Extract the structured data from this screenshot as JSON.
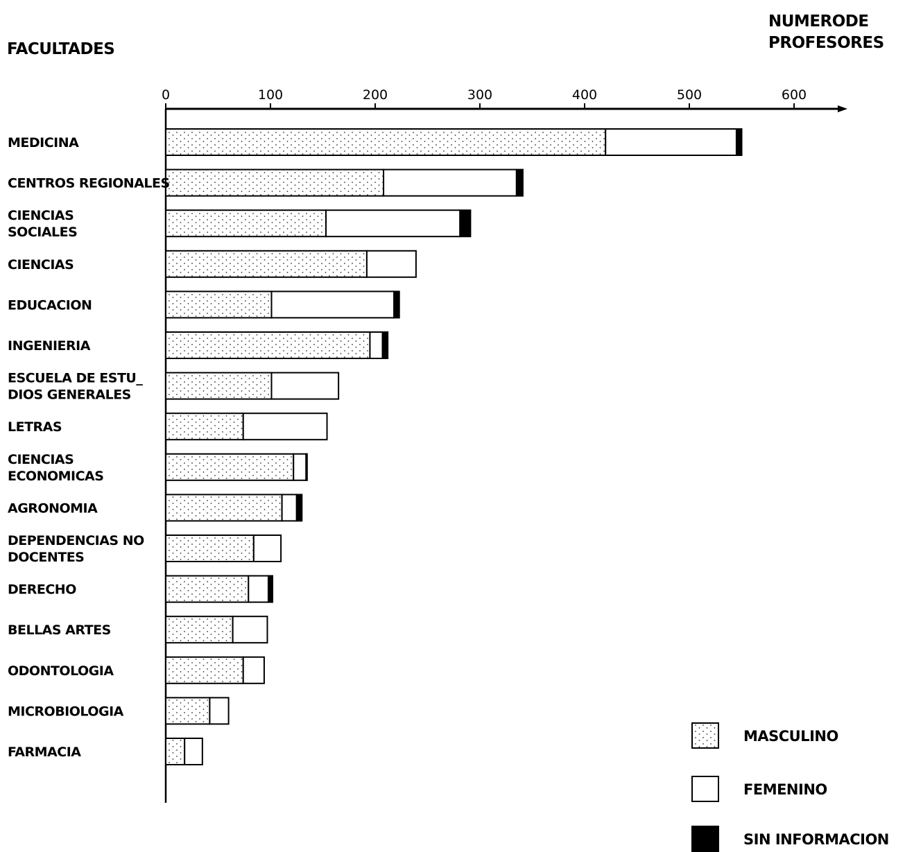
{
  "chart_data": {
    "type": "bar",
    "orientation": "horizontal",
    "stacked": true,
    "category_axis_title": "FACULTADES",
    "value_axis_title_line1": "NUMERODE",
    "value_axis_title_line2": "PROFESORES",
    "xlim": [
      0,
      650
    ],
    "xticks": [
      0,
      100,
      200,
      300,
      400,
      500,
      600
    ],
    "categories": [
      [
        "MEDICINA"
      ],
      [
        "CENTROS REGIONALES"
      ],
      [
        "CIENCIAS",
        "SOCIALES"
      ],
      [
        "CIENCIAS"
      ],
      [
        "EDUCACION"
      ],
      [
        "INGENIERIA"
      ],
      [
        "ESCUELA DE ESTU_",
        "DIOS GENERALES"
      ],
      [
        "LETRAS"
      ],
      [
        "CIENCIAS",
        "ECONOMICAS"
      ],
      [
        "AGRONOMIA"
      ],
      [
        "DEPENDENCIAS NO",
        "DOCENTES"
      ],
      [
        "DERECHO"
      ],
      [
        "BELLAS ARTES"
      ],
      [
        "ODONTOLOGIA"
      ],
      [
        "MICROBIOLOGIA"
      ],
      [
        "FARMACIA"
      ]
    ],
    "series": [
      {
        "name": "MASCULINO",
        "fill": "dotted",
        "values": [
          420,
          208,
          153,
          192,
          101,
          195,
          101,
          74,
          122,
          111,
          84,
          79,
          64,
          74,
          42,
          18
        ]
      },
      {
        "name": "FEMENINO",
        "fill": "white",
        "values": [
          125,
          127,
          128,
          47,
          117,
          12,
          64,
          80,
          12,
          14,
          26,
          19,
          33,
          20,
          18,
          17
        ]
      },
      {
        "name": "SIN INFORMACION",
        "fill": "black",
        "values": [
          5,
          6,
          10,
          0,
          5,
          5,
          0,
          0,
          1,
          5,
          0,
          4,
          0,
          0,
          0,
          0
        ]
      }
    ],
    "legend": "bottom-right",
    "grid": false
  }
}
